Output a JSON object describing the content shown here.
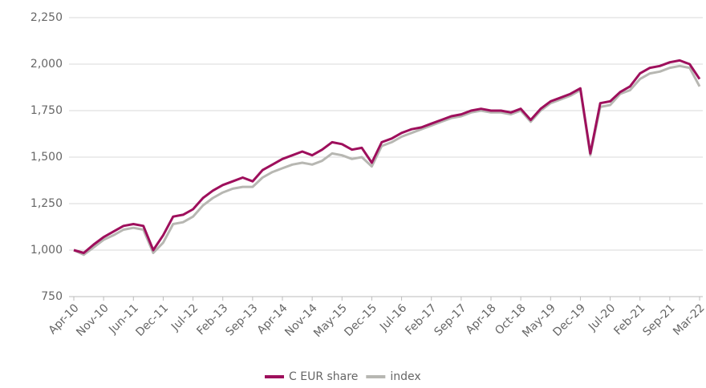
{
  "chart_data": {
    "type": "line",
    "categories": [
      "Apr-10",
      null,
      null,
      "Nov-10",
      null,
      null,
      "Jun-11",
      null,
      null,
      "Dec-11",
      null,
      null,
      "Jul-12",
      null,
      null,
      "Feb-13",
      null,
      null,
      "Sep-13",
      null,
      null,
      "Apr-14",
      null,
      null,
      "Nov-14",
      null,
      null,
      "May-15",
      null,
      null,
      "Dec-15",
      null,
      null,
      "Jul-16",
      null,
      null,
      "Feb-17",
      null,
      null,
      "Sep-17",
      null,
      null,
      "Apr-18",
      null,
      null,
      "Oct-18",
      null,
      null,
      "May-19",
      null,
      null,
      "Dec-19",
      null,
      null,
      "Jul-20",
      null,
      null,
      "Feb-21",
      null,
      null,
      "Sep-21",
      null,
      null,
      "Mar-22"
    ],
    "series": [
      {
        "name": "C EUR share",
        "color": "#9e0f5c",
        "values": [
          1000,
          985,
          1030,
          1070,
          1100,
          1130,
          1140,
          1130,
          1000,
          1080,
          1180,
          1190,
          1220,
          1280,
          1320,
          1350,
          1370,
          1390,
          1370,
          1430,
          1460,
          1490,
          1510,
          1530,
          1510,
          1540,
          1580,
          1570,
          1540,
          1550,
          1470,
          1580,
          1600,
          1630,
          1650,
          1660,
          1680,
          1700,
          1720,
          1730,
          1750,
          1760,
          1750,
          1750,
          1740,
          1760,
          1700,
          1760,
          1800,
          1820,
          1840,
          1870,
          1520,
          1790,
          1800,
          1850,
          1880,
          1950,
          1980,
          1990,
          2010,
          2020,
          2000,
          1920
        ]
      },
      {
        "name": "index",
        "color": "#b7b7b2",
        "values": [
          1000,
          975,
          1015,
          1055,
          1080,
          1110,
          1120,
          1110,
          985,
          1040,
          1140,
          1150,
          1180,
          1240,
          1280,
          1310,
          1330,
          1340,
          1340,
          1390,
          1420,
          1440,
          1460,
          1470,
          1460,
          1480,
          1520,
          1510,
          1490,
          1500,
          1450,
          1560,
          1580,
          1610,
          1630,
          1650,
          1670,
          1690,
          1710,
          1720,
          1740,
          1750,
          1740,
          1740,
          1730,
          1750,
          1690,
          1750,
          1790,
          1810,
          1830,
          1860,
          1510,
          1770,
          1780,
          1840,
          1860,
          1920,
          1950,
          1960,
          1980,
          1990,
          1980,
          1880
        ]
      }
    ],
    "ylim": [
      750,
      2250
    ],
    "yticks": [
      750,
      {
        "value": 1000,
        "label": "1,000"
      },
      {
        "value": 1250,
        "label": "1,250"
      },
      {
        "value": 1500,
        "label": "1,500"
      },
      {
        "value": 1750,
        "label": "1,750"
      },
      {
        "value": 2000,
        "label": "2,000"
      },
      {
        "value": 2250,
        "label": "2,250"
      }
    ],
    "grid": true,
    "legend": "bottom"
  }
}
